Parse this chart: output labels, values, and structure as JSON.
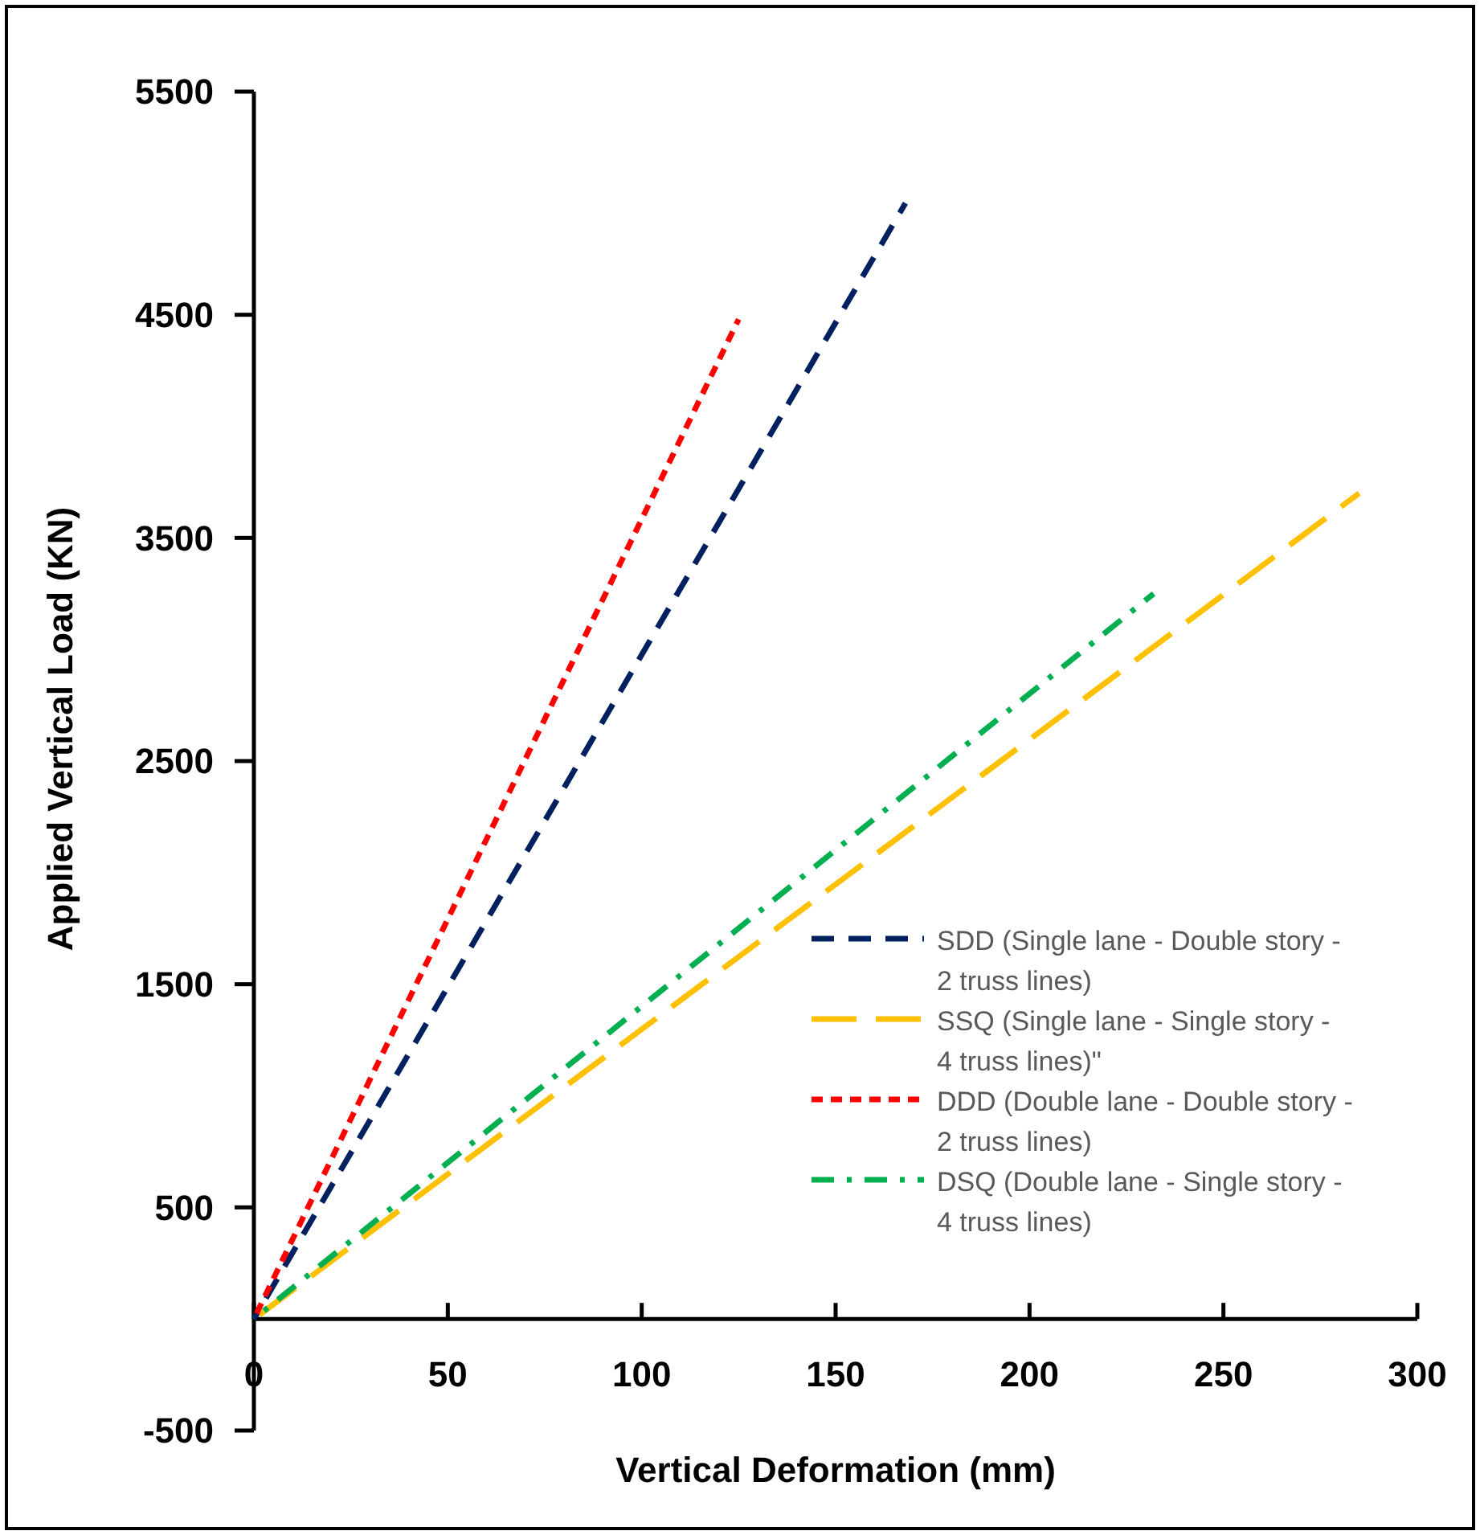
{
  "chart_data": {
    "type": "line",
    "xlabel": "Vertical Deformation (mm)",
    "ylabel": "Applied Vertical Load (KN)",
    "xlim": [
      0,
      300
    ],
    "xticks": [
      0,
      50,
      100,
      150,
      200,
      250,
      300
    ],
    "ylim": [
      -500,
      5500
    ],
    "yticks": [
      -500,
      500,
      1500,
      2500,
      3500,
      4500,
      5500
    ],
    "grid": false,
    "legend": "bottom right",
    "marker": "none",
    "line_style": "dashed",
    "series": [
      {
        "name": "SDD (Single lane - Double story - 2 truss lines)",
        "color": "#002060",
        "x": [
          0,
          168
        ],
        "values": [
          0,
          5000
        ]
      },
      {
        "name": "SSQ (Single lane - Single story - 4 truss lines)\"",
        "color": "#ffc000",
        "x": [
          0,
          285
        ],
        "values": [
          0,
          3700
        ]
      },
      {
        "name": "DDD (Double lane - Double story - 2 truss lines)",
        "color": "#ff0000",
        "x": [
          0,
          125
        ],
        "values": [
          0,
          4480
        ]
      },
      {
        "name": "DSQ (Double lane - Single story - 4 truss lines)",
        "color": "#00b050",
        "x": [
          0,
          232
        ],
        "values": [
          0,
          3250
        ]
      }
    ]
  }
}
